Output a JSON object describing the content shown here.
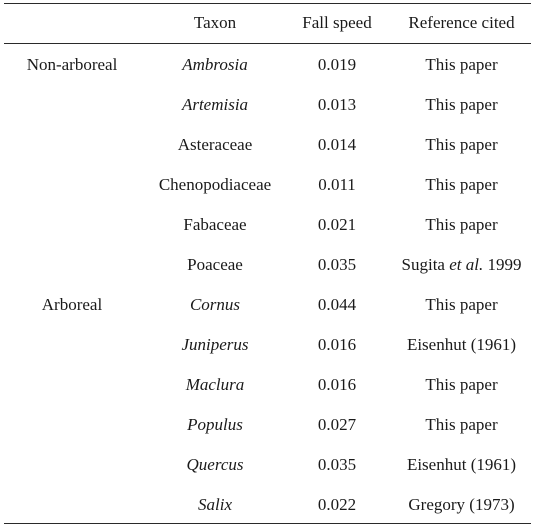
{
  "headers": {
    "group": "",
    "taxon": "Taxon",
    "fall_speed": "Fall speed",
    "reference": "Reference cited"
  },
  "rows": [
    {
      "group": "Non-arboreal",
      "taxon": "Ambrosia",
      "taxon_italic": true,
      "fall_speed": "0.019",
      "ref_pre": "This paper",
      "ref_em": "",
      "ref_post": ""
    },
    {
      "group": "",
      "taxon": "Artemisia",
      "taxon_italic": true,
      "fall_speed": "0.013",
      "ref_pre": "This paper",
      "ref_em": "",
      "ref_post": ""
    },
    {
      "group": "",
      "taxon": "Asteraceae",
      "taxon_italic": false,
      "fall_speed": "0.014",
      "ref_pre": "This paper",
      "ref_em": "",
      "ref_post": ""
    },
    {
      "group": "",
      "taxon": "Chenopodiaceae",
      "taxon_italic": false,
      "fall_speed": "0.011",
      "ref_pre": "This paper",
      "ref_em": "",
      "ref_post": ""
    },
    {
      "group": "",
      "taxon": "Fabaceae",
      "taxon_italic": false,
      "fall_speed": "0.021",
      "ref_pre": "This paper",
      "ref_em": "",
      "ref_post": ""
    },
    {
      "group": "",
      "taxon": "Poaceae",
      "taxon_italic": false,
      "fall_speed": "0.035",
      "ref_pre": "Sugita ",
      "ref_em": "et al.",
      "ref_post": " 1999"
    },
    {
      "group": "Arboreal",
      "taxon": "Cornus",
      "taxon_italic": true,
      "fall_speed": "0.044",
      "ref_pre": "This paper",
      "ref_em": "",
      "ref_post": ""
    },
    {
      "group": "",
      "taxon": "Juniperus",
      "taxon_italic": true,
      "fall_speed": "0.016",
      "ref_pre": "Eisenhut (1961)",
      "ref_em": "",
      "ref_post": ""
    },
    {
      "group": "",
      "taxon": "Maclura",
      "taxon_italic": true,
      "fall_speed": "0.016",
      "ref_pre": "This paper",
      "ref_em": "",
      "ref_post": ""
    },
    {
      "group": "",
      "taxon": "Populus",
      "taxon_italic": true,
      "fall_speed": "0.027",
      "ref_pre": "This paper",
      "ref_em": "",
      "ref_post": ""
    },
    {
      "group": "",
      "taxon": "Quercus",
      "taxon_italic": true,
      "fall_speed": "0.035",
      "ref_pre": "Eisenhut (1961)",
      "ref_em": "",
      "ref_post": ""
    },
    {
      "group": "",
      "taxon": "Salix",
      "taxon_italic": true,
      "fall_speed": "0.022",
      "ref_pre": "Gregory (1973)",
      "ref_em": "",
      "ref_post": ""
    }
  ]
}
